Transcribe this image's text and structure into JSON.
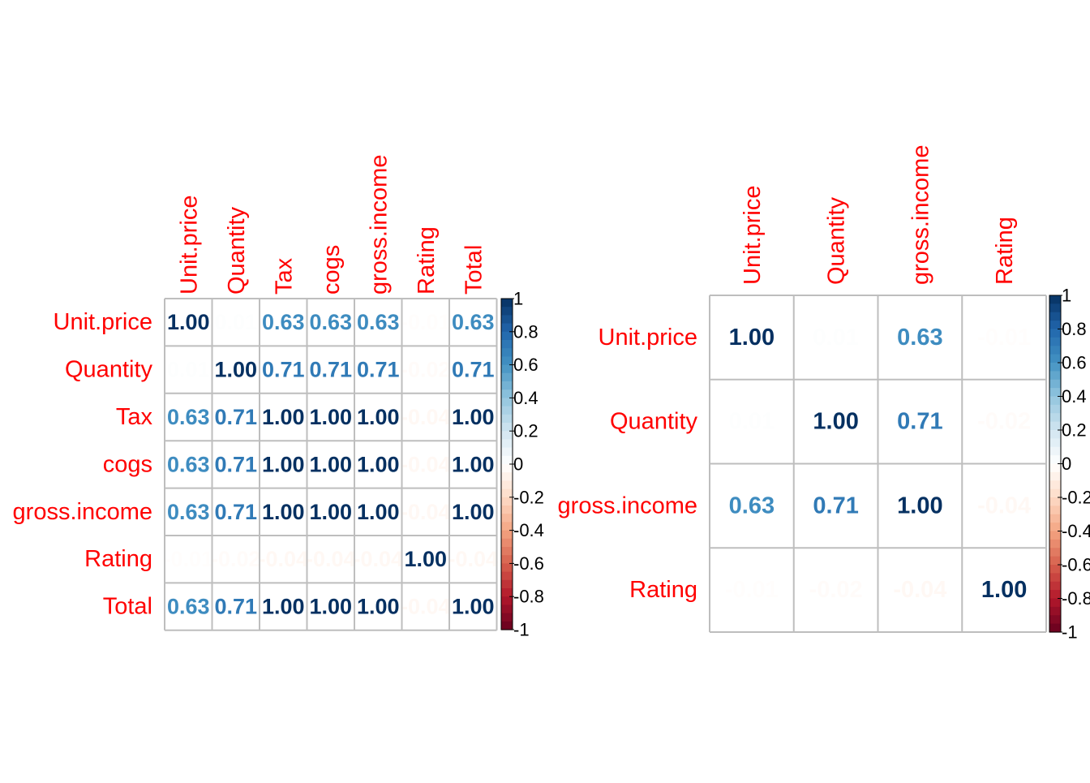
{
  "chart_data": [
    {
      "type": "heatmap",
      "variables": [
        "Unit.price",
        "Quantity",
        "Tax",
        "cogs",
        "gross.income",
        "Rating",
        "Total"
      ],
      "matrix": [
        [
          1.0,
          0.01,
          0.63,
          0.63,
          0.63,
          -0.01,
          0.63
        ],
        [
          0.01,
          1.0,
          0.71,
          0.71,
          0.71,
          -0.02,
          0.71
        ],
        [
          0.63,
          0.71,
          1.0,
          1.0,
          1.0,
          -0.04,
          1.0
        ],
        [
          0.63,
          0.71,
          1.0,
          1.0,
          1.0,
          -0.04,
          1.0
        ],
        [
          0.63,
          0.71,
          1.0,
          1.0,
          1.0,
          -0.04,
          1.0
        ],
        [
          -0.01,
          -0.02,
          -0.04,
          -0.04,
          -0.04,
          1.0,
          -0.04
        ],
        [
          0.63,
          0.71,
          1.0,
          1.0,
          1.0,
          -0.04,
          1.0
        ]
      ],
      "color_scale": {
        "min": -1,
        "max": 1,
        "ticks": [
          "1",
          "0.8",
          "0.6",
          "0.4",
          "0.2",
          "0",
          "-0.2",
          "-0.4",
          "-0.6",
          "-0.8",
          "-1"
        ]
      }
    },
    {
      "type": "heatmap",
      "variables": [
        "Unit.price",
        "Quantity",
        "gross.income",
        "Rating"
      ],
      "matrix": [
        [
          1.0,
          0.01,
          0.63,
          -0.01
        ],
        [
          0.01,
          1.0,
          0.71,
          -0.02
        ],
        [
          0.63,
          0.71,
          1.0,
          -0.04
        ],
        [
          -0.01,
          -0.02,
          -0.04,
          1.0
        ]
      ],
      "color_scale": {
        "min": -1,
        "max": 1,
        "ticks": [
          "1",
          "0.8",
          "0.6",
          "0.4",
          "0.2",
          "0",
          "-0.2",
          "-0.4",
          "-0.6",
          "-0.8",
          "-1"
        ]
      }
    }
  ],
  "colors": {
    "label": "#ff0000",
    "grid": "#bebebe",
    "palette": [
      "#67001f",
      "#b2182b",
      "#d6604d",
      "#f4a582",
      "#fddbc7",
      "#ffffff",
      "#d1e5f0",
      "#92c5de",
      "#4393c3",
      "#2166ac",
      "#053061"
    ]
  }
}
